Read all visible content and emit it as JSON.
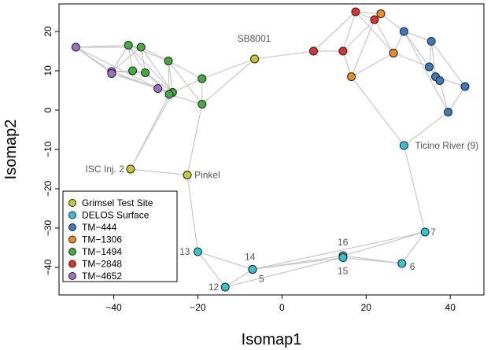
{
  "chart_data": {
    "type": "scatter",
    "title": "",
    "xlabel": "Isomap1",
    "ylabel": "Isomap2",
    "xlim": [
      -53,
      48
    ],
    "ylim": [
      -47,
      27
    ],
    "xticks": [
      -40,
      -20,
      0,
      20,
      40
    ],
    "yticks": [
      -40,
      -30,
      -20,
      -10,
      0,
      10,
      20
    ],
    "legend_position": "bottom-left",
    "groups": [
      {
        "name": "Grimsel Test Site",
        "color": "#c8c832"
      },
      {
        "name": "DELOS Surface",
        "color": "#33c5d6"
      },
      {
        "name": "TM−444",
        "color": "#3a7bbf"
      },
      {
        "name": "TM−1306",
        "color": "#f28b1e"
      },
      {
        "name": "TM−1494",
        "color": "#3fae3a"
      },
      {
        "name": "TM−2848",
        "color": "#e0312e"
      },
      {
        "name": "TM−4652",
        "color": "#9c6fc9"
      }
    ],
    "points": [
      {
        "id": "p1",
        "x": -49,
        "y": 16,
        "group": 6
      },
      {
        "id": "p2",
        "x": -40.5,
        "y": 9.8,
        "group": 6
      },
      {
        "id": "p3",
        "x": -40.5,
        "y": 9.3,
        "group": 6
      },
      {
        "id": "p4",
        "x": -29.5,
        "y": 5.5,
        "group": 6
      },
      {
        "id": "p5",
        "x": -36.5,
        "y": 16.5,
        "group": 4
      },
      {
        "id": "p6",
        "x": -33.5,
        "y": 16,
        "group": 4
      },
      {
        "id": "p7",
        "x": -35.5,
        "y": 10,
        "group": 4
      },
      {
        "id": "p8",
        "x": -32.5,
        "y": 9.5,
        "group": 4
      },
      {
        "id": "p9",
        "x": -27,
        "y": 12.5,
        "group": 4
      },
      {
        "id": "p10",
        "x": -26,
        "y": 4.5,
        "group": 4
      },
      {
        "id": "p11",
        "x": -26.8,
        "y": 4,
        "group": 4
      },
      {
        "id": "p12",
        "x": -19,
        "y": 8,
        "group": 4
      },
      {
        "id": "p13",
        "x": -19,
        "y": 1.5,
        "group": 4
      },
      {
        "id": "p14",
        "x": -6.5,
        "y": 13,
        "label": "SB8001",
        "group": 0
      },
      {
        "id": "p15",
        "x": -36,
        "y": -15,
        "label": "ISC Inj. 2",
        "group": 0
      },
      {
        "id": "p16",
        "x": -22.5,
        "y": -16.5,
        "label": "Pinkel",
        "group": 0
      },
      {
        "id": "p17",
        "x": 7.5,
        "y": 15,
        "group": 5
      },
      {
        "id": "p18",
        "x": 14.5,
        "y": 15,
        "group": 5
      },
      {
        "id": "p19",
        "x": 17.5,
        "y": 25,
        "group": 5
      },
      {
        "id": "p20",
        "x": 22,
        "y": 23,
        "group": 5
      },
      {
        "id": "p21",
        "x": 23.5,
        "y": 24.5,
        "group": 3
      },
      {
        "id": "p22",
        "x": 26.5,
        "y": 14.5,
        "group": 3
      },
      {
        "id": "p23",
        "x": 26.5,
        "y": 14.5,
        "group": 3
      },
      {
        "id": "p24",
        "x": 16.5,
        "y": 8.5,
        "group": 3
      },
      {
        "id": "p25",
        "x": 29,
        "y": 20,
        "group": 2
      },
      {
        "id": "p26",
        "x": 35.5,
        "y": 17.5,
        "group": 2
      },
      {
        "id": "p27",
        "x": 35,
        "y": 11,
        "group": 2
      },
      {
        "id": "p28",
        "x": 36.5,
        "y": 8.5,
        "group": 2
      },
      {
        "id": "p29",
        "x": 37.5,
        "y": 7.5,
        "group": 2
      },
      {
        "id": "p30",
        "x": 43.5,
        "y": 6,
        "group": 2
      },
      {
        "id": "p31",
        "x": 39.5,
        "y": -0.5,
        "group": 2
      },
      {
        "id": "p32",
        "x": 29,
        "y": -9,
        "label": "Ticino River (9)",
        "group": 1
      },
      {
        "id": "p33",
        "x": 34,
        "y": -31,
        "label": "7",
        "group": 1
      },
      {
        "id": "p34",
        "x": 28.5,
        "y": -39,
        "label": "6",
        "group": 1
      },
      {
        "id": "p35",
        "x": 14.5,
        "y": -37,
        "label": "16",
        "group": 1
      },
      {
        "id": "p36",
        "x": 14.5,
        "y": -37.5,
        "label": "15",
        "group": 1
      },
      {
        "id": "p37",
        "x": -7,
        "y": -40.5,
        "label": "14",
        "group": 1
      },
      {
        "id": "p37b",
        "x": -7,
        "y": -40.5,
        "label": "5",
        "group": 1
      },
      {
        "id": "p38",
        "x": -20,
        "y": -36,
        "label": "13",
        "group": 1
      },
      {
        "id": "p39",
        "x": -13.5,
        "y": -45,
        "label": "12",
        "group": 1
      }
    ],
    "edges": [
      [
        "p1",
        "p5"
      ],
      [
        "p1",
        "p2"
      ],
      [
        "p1",
        "p3"
      ],
      [
        "p1",
        "p6"
      ],
      [
        "p1",
        "p4"
      ],
      [
        "p2",
        "p5"
      ],
      [
        "p2",
        "p6"
      ],
      [
        "p2",
        "p7"
      ],
      [
        "p2",
        "p8"
      ],
      [
        "p2",
        "p4"
      ],
      [
        "p3",
        "p4"
      ],
      [
        "p3",
        "p10"
      ],
      [
        "p5",
        "p6"
      ],
      [
        "p5",
        "p7"
      ],
      [
        "p5",
        "p8"
      ],
      [
        "p5",
        "p9"
      ],
      [
        "p5",
        "p10"
      ],
      [
        "p6",
        "p8"
      ],
      [
        "p6",
        "p9"
      ],
      [
        "p6",
        "p10"
      ],
      [
        "p7",
        "p8"
      ],
      [
        "p8",
        "p10"
      ],
      [
        "p8",
        "p11"
      ],
      [
        "p9",
        "p10"
      ],
      [
        "p9",
        "p11"
      ],
      [
        "p9",
        "p12"
      ],
      [
        "p9",
        "p13"
      ],
      [
        "p4",
        "p10"
      ],
      [
        "p4",
        "p11"
      ],
      [
        "p10",
        "p12"
      ],
      [
        "p11",
        "p13"
      ],
      [
        "p12",
        "p13"
      ],
      [
        "p12",
        "p14"
      ],
      [
        "p13",
        "p14"
      ],
      [
        "p14",
        "p17"
      ],
      [
        "p15",
        "p10"
      ],
      [
        "p15",
        "p11"
      ],
      [
        "p15",
        "p16"
      ],
      [
        "p16",
        "p13"
      ],
      [
        "p16",
        "p38"
      ],
      [
        "p17",
        "p18"
      ],
      [
        "p17",
        "p19"
      ],
      [
        "p18",
        "p19"
      ],
      [
        "p18",
        "p20"
      ],
      [
        "p18",
        "p24"
      ],
      [
        "p19",
        "p20"
      ],
      [
        "p19",
        "p21"
      ],
      [
        "p19",
        "p22"
      ],
      [
        "p20",
        "p21"
      ],
      [
        "p20",
        "p22"
      ],
      [
        "p20",
        "p24"
      ],
      [
        "p21",
        "p25"
      ],
      [
        "p22",
        "p24"
      ],
      [
        "p22",
        "p25"
      ],
      [
        "p22",
        "p27"
      ],
      [
        "p24",
        "p32"
      ],
      [
        "p25",
        "p26"
      ],
      [
        "p25",
        "p27"
      ],
      [
        "p25",
        "p31"
      ],
      [
        "p26",
        "p27"
      ],
      [
        "p26",
        "p30"
      ],
      [
        "p26",
        "p28"
      ],
      [
        "p27",
        "p28"
      ],
      [
        "p27",
        "p29"
      ],
      [
        "p28",
        "p29"
      ],
      [
        "p28",
        "p30"
      ],
      [
        "p29",
        "p31"
      ],
      [
        "p30",
        "p31"
      ],
      [
        "p31",
        "p32"
      ],
      [
        "p32",
        "p33"
      ],
      [
        "p33",
        "p34"
      ],
      [
        "p33",
        "p35"
      ],
      [
        "p33",
        "p37"
      ],
      [
        "p34",
        "p35"
      ],
      [
        "p34",
        "p36"
      ],
      [
        "p35",
        "p36"
      ],
      [
        "p35",
        "p37"
      ],
      [
        "p36",
        "p37"
      ],
      [
        "p36",
        "p39"
      ],
      [
        "p37",
        "p38"
      ],
      [
        "p37",
        "p39"
      ],
      [
        "p38",
        "p39"
      ]
    ]
  }
}
